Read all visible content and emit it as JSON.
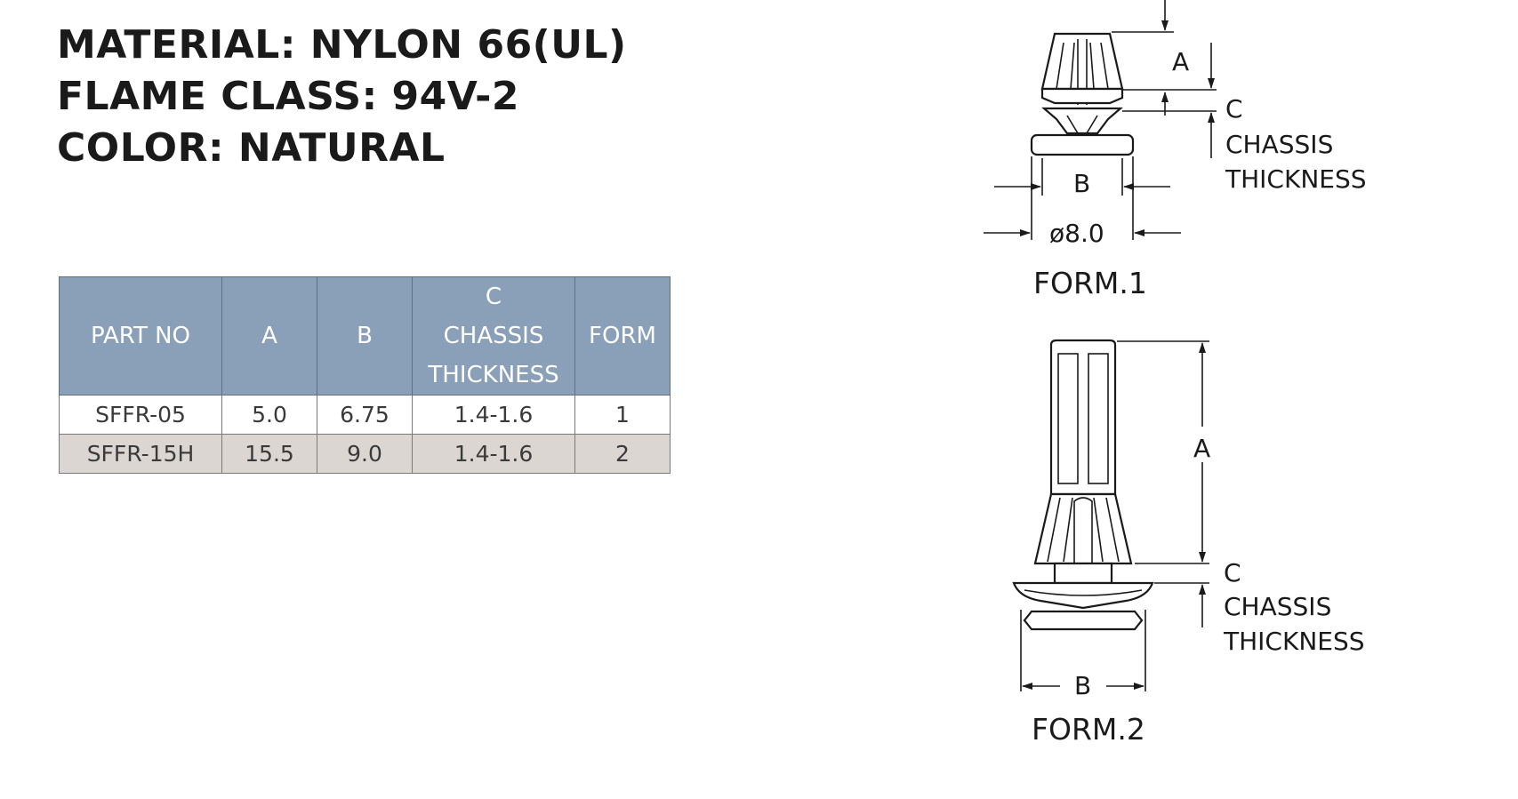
{
  "specs": {
    "material": "MATERIAL: NYLON 66(UL)",
    "flame_class": "FLAME CLASS: 94V-2",
    "color": "COLOR: NATURAL"
  },
  "table": {
    "headers": {
      "part_no": "PART NO",
      "a": "A",
      "b": "B",
      "c_line1": "C",
      "c_line2": "CHASSIS",
      "c_line3": "THICKNESS",
      "form": "FORM"
    },
    "rows": [
      {
        "part_no": "SFFR-05",
        "a": "5.0",
        "b": "6.75",
        "c": "1.4-1.6",
        "form": "1"
      },
      {
        "part_no": "SFFR-15H",
        "a": "15.5",
        "b": "9.0",
        "c": "1.4-1.6",
        "form": "2"
      }
    ],
    "colors": {
      "header_bg": "#8a9fb8",
      "alt_row_bg": "#dcd6d3"
    }
  },
  "form1": {
    "label_a": "A",
    "label_b": "B",
    "label_c": "C",
    "chassis": "CHASSIS",
    "thickness": "THICKNESS",
    "diameter": "ø8.0",
    "title": "FORM.1"
  },
  "form2": {
    "label_a": "A",
    "label_b": "B",
    "label_c": "C",
    "chassis": "CHASSIS",
    "thickness": "THICKNESS",
    "title": "FORM.2"
  }
}
